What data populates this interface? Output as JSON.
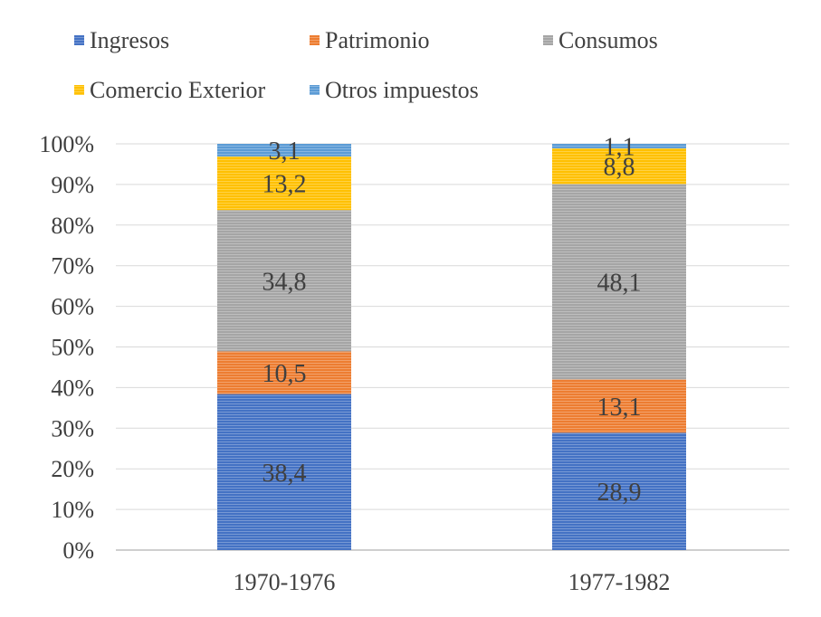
{
  "chart_data": {
    "type": "bar",
    "stacked": true,
    "percent_stacked": true,
    "title": "",
    "xlabel": "",
    "ylabel": "",
    "ylim": [
      0,
      100
    ],
    "yticks": [
      "0%",
      "10%",
      "20%",
      "30%",
      "40%",
      "50%",
      "60%",
      "70%",
      "80%",
      "90%",
      "100%"
    ],
    "grid": true,
    "legend_position": "top",
    "categories": [
      "1970-1976",
      "1977-1982"
    ],
    "series": [
      {
        "name": "Ingresos",
        "color": "#4472C4",
        "values": [
          38.4,
          28.9
        ],
        "labels": [
          "38,4",
          "28,9"
        ]
      },
      {
        "name": "Patrimonio",
        "color": "#ED7D31",
        "values": [
          10.5,
          13.1
        ],
        "labels": [
          "10,5",
          "13,1"
        ]
      },
      {
        "name": "Consumos",
        "color": "#A5A5A5",
        "values": [
          34.8,
          48.1
        ],
        "labels": [
          "34,8",
          "48,1"
        ]
      },
      {
        "name": "Comercio Exterior",
        "color": "#FFC000",
        "values": [
          13.2,
          8.8
        ],
        "labels": [
          "13,2",
          "8,8"
        ]
      },
      {
        "name": "Otros impuestos",
        "color": "#5B9BD5",
        "values": [
          3.1,
          1.1
        ],
        "labels": [
          "3,1",
          "1,1"
        ]
      }
    ]
  }
}
